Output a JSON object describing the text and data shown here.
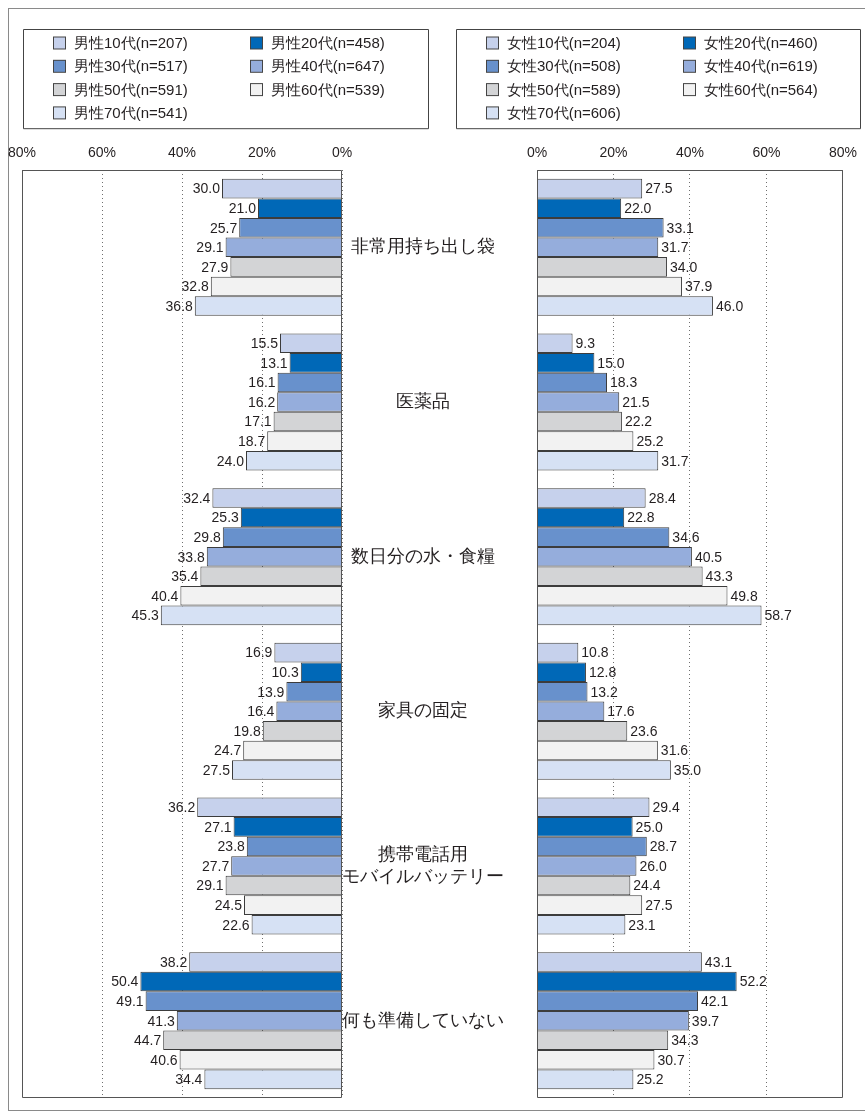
{
  "chart_data": [
    {
      "type": "bar",
      "orientation": "horizontal",
      "legend": "top",
      "grid": "x",
      "categories": [
        "非常用持ち出し袋",
        "医薬品",
        "数日分の水・食糧",
        "家具の固定",
        "携帯電話用モバイルバッテリー",
        "何も準備していない"
      ],
      "xlim": [
        80,
        0
      ],
      "xticks": [
        {
          "value": 80,
          "label": "80%"
        },
        {
          "value": 60,
          "label": "60%"
        },
        {
          "value": 40,
          "label": "40%"
        },
        {
          "value": 20,
          "label": "20%"
        },
        {
          "value": 0,
          "label": "0%"
        }
      ],
      "series": [
        {
          "name": "男性10代(n=207)",
          "color": "#c6d1ec",
          "values": [
            30.0,
            15.5,
            32.4,
            16.9,
            36.2,
            38.2
          ],
          "value_labels": [
            "30.0",
            "15.5",
            "32.4",
            "16.9",
            "36.2",
            "38.2"
          ]
        },
        {
          "name": "男性20代(n=458)",
          "color": "#0068b7",
          "values": [
            21.0,
            13.1,
            25.3,
            10.3,
            27.1,
            50.4
          ],
          "value_labels": [
            "21.0",
            "13.1",
            "25.3",
            "10.3",
            "27.1",
            "50.4"
          ]
        },
        {
          "name": "男性30代(n=517)",
          "color": "#6891cc",
          "values": [
            25.7,
            16.1,
            29.8,
            13.9,
            23.8,
            49.1
          ],
          "value_labels": [
            "25.7",
            "16.1",
            "29.8",
            "13.9",
            "23.8",
            "49.1"
          ]
        },
        {
          "name": "男性40代(n=647)",
          "color": "#95addc",
          "values": [
            29.1,
            16.2,
            33.8,
            16.4,
            27.7,
            41.3
          ],
          "value_labels": [
            "29.1",
            "16.2",
            "33.8",
            "16.4",
            "27.7",
            "41.3"
          ]
        },
        {
          "name": "男性50代(n=591)",
          "color": "#d3d4d6",
          "values": [
            27.9,
            17.1,
            35.4,
            19.8,
            29.1,
            44.7
          ],
          "value_labels": [
            "27.9",
            "17.1",
            "35.4",
            "19.8",
            "29.1",
            "44.7"
          ]
        },
        {
          "name": "男性60代(n=539)",
          "color": "#f2f2f2",
          "values": [
            32.8,
            18.7,
            40.4,
            24.7,
            24.5,
            40.6
          ],
          "value_labels": [
            "32.8",
            "18.7",
            "40.4",
            "24.7",
            "24.5",
            "40.6"
          ]
        },
        {
          "name": "男性70代(n=541)",
          "color": "#d6e1f4",
          "values": [
            36.8,
            24.0,
            45.3,
            27.5,
            22.6,
            34.4
          ],
          "value_labels": [
            "36.8",
            "24.0",
            "45.3",
            "27.5",
            "22.6",
            "34.4"
          ]
        }
      ]
    },
    {
      "type": "bar",
      "orientation": "horizontal",
      "legend": "top",
      "grid": "x",
      "tick_labels": "x",
      "categories": [
        "非常用持ち出し袋",
        "医薬品",
        "数日分の水・食糧",
        "家具の固定",
        "携帯電話用モバイルバッテリー",
        "何も準備していない"
      ],
      "xlim": [
        0,
        80
      ],
      "xticks": [
        {
          "value": 0,
          "label": "0%"
        },
        {
          "value": 20,
          "label": "20%"
        },
        {
          "value": 40,
          "label": "40%"
        },
        {
          "value": 60,
          "label": "60%"
        },
        {
          "value": 80,
          "label": "80%"
        }
      ],
      "series": [
        {
          "name": "女性10代(n=204)",
          "color": "#c6d1ec",
          "values": [
            27.5,
            9.3,
            28.4,
            10.8,
            29.4,
            43.1
          ],
          "value_labels": [
            "27.5",
            "9.3",
            "28.4",
            "10.8",
            "29.4",
            "43.1"
          ]
        },
        {
          "name": "女性20代(n=460)",
          "color": "#0068b7",
          "values": [
            22.0,
            15.0,
            22.8,
            12.8,
            25.0,
            52.2
          ],
          "value_labels": [
            "22.0",
            "15.0",
            "22.8",
            "12.8",
            "25.0",
            "52.2"
          ]
        },
        {
          "name": "女性30代(n=508)",
          "color": "#6891cc",
          "values": [
            33.1,
            18.3,
            34.6,
            13.2,
            28.7,
            42.1
          ],
          "value_labels": [
            "33.1",
            "18.3",
            "34.6",
            "13.2",
            "28.7",
            "42.1"
          ]
        },
        {
          "name": "女性40代(n=619)",
          "color": "#95addc",
          "values": [
            31.7,
            21.5,
            40.5,
            17.6,
            26.0,
            39.7
          ],
          "value_labels": [
            "31.7",
            "21.5",
            "40.5",
            "17.6",
            "26.0",
            "39.7"
          ]
        },
        {
          "name": "女性50代(n=589)",
          "color": "#d3d4d6",
          "values": [
            34.0,
            22.2,
            43.3,
            23.6,
            24.4,
            34.3
          ],
          "value_labels": [
            "34.0",
            "22.2",
            "43.3",
            "23.6",
            "24.4",
            "34.3"
          ]
        },
        {
          "name": "女性60代(n=564)",
          "color": "#f2f2f2",
          "values": [
            37.9,
            25.2,
            49.8,
            31.6,
            27.5,
            30.7
          ],
          "value_labels": [
            "37.9",
            "25.2",
            "49.8",
            "31.6",
            "27.5",
            "30.7"
          ]
        },
        {
          "name": "女性70代(n=606)",
          "color": "#d6e1f4",
          "values": [
            46.0,
            31.7,
            58.7,
            35.0,
            23.1,
            25.2
          ],
          "value_labels": [
            "46.0",
            "31.7",
            "58.7",
            "35.0",
            "23.1",
            "25.2"
          ]
        }
      ]
    }
  ]
}
